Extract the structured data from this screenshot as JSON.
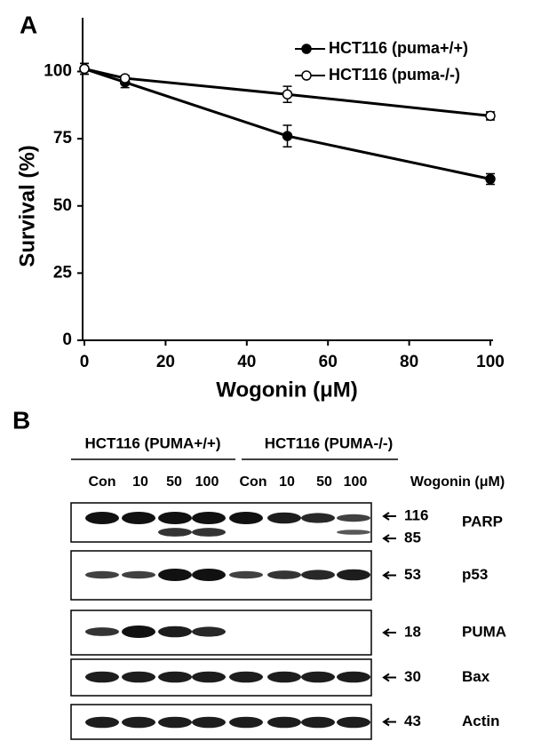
{
  "panel_a": {
    "label": "A",
    "chart_data": {
      "type": "line",
      "xlabel": "Wogonin (μM)",
      "ylabel": "Survival (%)",
      "x": [
        0,
        10,
        50,
        100
      ],
      "xlim": [
        0,
        100
      ],
      "xticks": [
        0,
        20,
        40,
        60,
        80,
        100
      ],
      "ylim": [
        0,
        120
      ],
      "yticks": [
        0,
        25,
        50,
        75,
        100
      ],
      "legend": "upper right",
      "series": [
        {
          "name": "HCT116 (puma+/+)",
          "color": "#000000",
          "marker": "filled",
          "values": [
            101,
            96,
            76,
            60
          ],
          "errors": [
            2,
            2,
            4,
            2
          ]
        },
        {
          "name": "HCT116 (puma-/-)",
          "color": "#000000",
          "marker": "open",
          "values": [
            101,
            97.5,
            91.5,
            83.5
          ],
          "errors": [
            2,
            1,
            3,
            1.5
          ]
        }
      ]
    }
  },
  "panel_b": {
    "label": "B",
    "groups": [
      "HCT116 (PUMA+/+)",
      "HCT116 (PUMA-/-)"
    ],
    "treatment": "Wogonin (μM)",
    "lanes": [
      "Con",
      "10",
      "50",
      "100",
      "Con",
      "10",
      "50",
      "100"
    ],
    "rows": [
      {
        "protein": "PARP",
        "markers": [
          116,
          85
        ]
      },
      {
        "protein": "p53",
        "markers": [
          53
        ]
      },
      {
        "protein": "PUMA",
        "markers": [
          18
        ]
      },
      {
        "protein": "Bax",
        "markers": [
          30
        ]
      },
      {
        "protein": "Actin",
        "markers": [
          43
        ]
      }
    ]
  }
}
